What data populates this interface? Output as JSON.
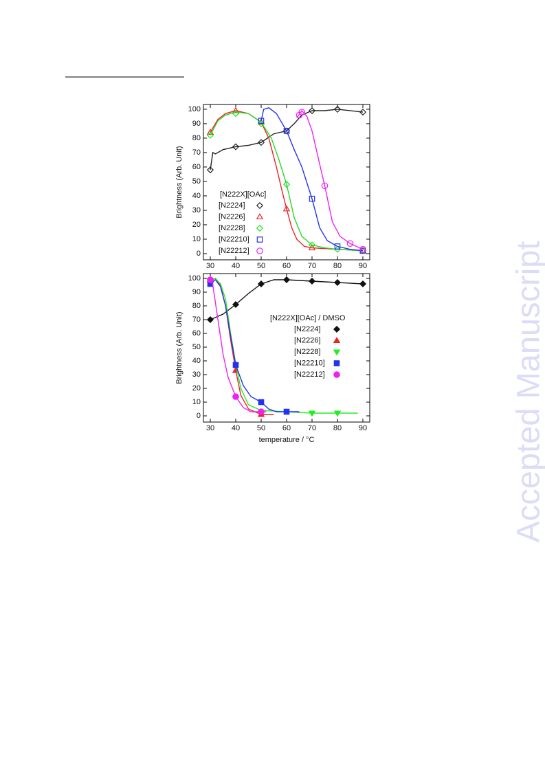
{
  "watermark": "Accepted Manuscript",
  "chart_data": [
    {
      "type": "line",
      "y_label": "Brightness (Arb. Unit)",
      "legend_title": "[N222X][OAc]",
      "filled_markers": false,
      "xlim": [
        27.3,
        92.7
      ],
      "ylim": [
        -4.3,
        103.3
      ],
      "xticks": [
        30,
        40,
        50,
        60,
        70,
        80,
        90
      ],
      "yticks": [
        0,
        10,
        20,
        30,
        40,
        50,
        60,
        70,
        80,
        90,
        100
      ],
      "series": [
        {
          "name": "[N2224]",
          "color": "#222222",
          "marker": "diamond",
          "x": [
            30,
            40,
            50,
            60,
            70,
            80,
            90
          ],
          "values": [
            58,
            74,
            77,
            85,
            99,
            100,
            98
          ],
          "line_x": [
            30,
            31,
            32,
            35,
            40,
            45,
            50,
            55,
            60,
            63,
            66,
            70,
            75,
            80,
            90
          ],
          "line_values": [
            58,
            70,
            69,
            72,
            74,
            75,
            77,
            83,
            85,
            90,
            96,
            99,
            99,
            100,
            98
          ]
        },
        {
          "name": "[N2226]",
          "color": "#ee2222",
          "marker": "triangle",
          "x": [
            30,
            40,
            50,
            60,
            70,
            90
          ],
          "values": [
            84,
            99,
            91,
            31,
            4,
            2
          ],
          "line_x": [
            30,
            33,
            36,
            40,
            45,
            50,
            53,
            56,
            58,
            60,
            62,
            64,
            67,
            70,
            80,
            90
          ],
          "line_values": [
            84,
            93,
            97,
            99,
            97,
            91,
            80,
            60,
            45,
            31,
            18,
            10,
            5,
            4,
            3,
            2
          ]
        },
        {
          "name": "[N2228]",
          "color": "#22dd22",
          "marker": "diamond",
          "x": [
            30,
            40,
            50,
            60,
            70,
            80,
            90
          ],
          "values": [
            82,
            97,
            90,
            48,
            6,
            3,
            2
          ],
          "line_x": [
            30,
            33,
            36,
            40,
            45,
            50,
            54,
            57,
            60,
            63,
            66,
            70,
            75,
            80,
            90
          ],
          "line_values": [
            82,
            92,
            96,
            98,
            97,
            91,
            80,
            65,
            48,
            25,
            12,
            6,
            4,
            3,
            2
          ]
        },
        {
          "name": "[N22210]",
          "color": "#2233ee",
          "marker": "square",
          "x": [
            50,
            60,
            70,
            80,
            90
          ],
          "values": [
            92,
            85,
            38,
            5,
            2
          ],
          "line_x": [
            50,
            51,
            53,
            56,
            60,
            63,
            66,
            70,
            73,
            76,
            80,
            85,
            90
          ],
          "line_values": [
            92,
            100,
            101,
            97,
            85,
            72,
            60,
            38,
            18,
            9,
            5,
            3,
            2
          ]
        },
        {
          "name": "[N22212]",
          "color": "#ee22ee",
          "marker": "circle",
          "x": [
            65,
            66,
            75,
            85,
            90
          ],
          "values": [
            96,
            98,
            47,
            7,
            3
          ],
          "line_x": [
            64,
            66,
            68,
            70,
            73,
            75,
            78,
            81,
            85,
            90
          ],
          "line_values": [
            94,
            99,
            95,
            85,
            62,
            47,
            22,
            12,
            7,
            3
          ]
        }
      ]
    },
    {
      "type": "line",
      "x_label": "temperature / °C",
      "y_label": "Brightness (Arb. Unit)",
      "legend_title": "[N222X][OAc] / DMSO",
      "filled_markers": true,
      "xlim": [
        27.3,
        92.7
      ],
      "ylim": [
        -4.5,
        103.5
      ],
      "xticks": [
        30,
        40,
        50,
        60,
        70,
        80,
        90
      ],
      "yticks": [
        0,
        10,
        20,
        30,
        40,
        50,
        60,
        70,
        80,
        90,
        100
      ],
      "series": [
        {
          "name": "[N2224]",
          "color": "#111111",
          "marker": "diamond",
          "x": [
            30,
            40,
            50,
            60,
            70,
            80,
            90
          ],
          "values": [
            70,
            81,
            96,
            99,
            98,
            97,
            96
          ],
          "line_x": [
            30,
            35,
            40,
            45,
            50,
            55,
            60,
            70,
            80,
            90
          ],
          "line_values": [
            70,
            74,
            81,
            89,
            96,
            99,
            99,
            98,
            97,
            96
          ]
        },
        {
          "name": "[N2226]",
          "color": "#ee2222",
          "marker": "triangle",
          "x": [
            30,
            40,
            50
          ],
          "values": [
            99,
            33,
            1
          ],
          "line_x": [
            30,
            32,
            34,
            36,
            38,
            40,
            42,
            45,
            50,
            55
          ],
          "line_values": [
            99,
            100,
            95,
            80,
            55,
            33,
            15,
            5,
            1,
            1
          ]
        },
        {
          "name": "[N2228]",
          "color": "#22ee22",
          "marker": "triangle-down",
          "x": [
            30,
            70,
            80
          ],
          "values": [
            98,
            2,
            2
          ],
          "line_x": [
            30,
            32,
            34,
            36,
            38,
            40,
            42,
            45,
            50,
            60,
            70,
            80,
            88
          ],
          "line_values": [
            98,
            100,
            96,
            85,
            60,
            38,
            20,
            8,
            4,
            3,
            2,
            2,
            2
          ]
        },
        {
          "name": "[N22210]",
          "color": "#2233ee",
          "marker": "square",
          "x": [
            30,
            40,
            50,
            60
          ],
          "values": [
            96,
            37,
            10,
            3
          ],
          "line_x": [
            30,
            32,
            34,
            36,
            38,
            40,
            43,
            46,
            50,
            53,
            56,
            60,
            65
          ],
          "line_values": [
            96,
            99,
            94,
            80,
            58,
            37,
            22,
            14,
            10,
            5,
            3,
            3,
            3
          ]
        },
        {
          "name": "[N22212]",
          "color": "#ee22ee",
          "marker": "circle",
          "x": [
            30,
            40,
            50
          ],
          "values": [
            99,
            14,
            3
          ],
          "line_x": [
            30,
            31,
            33,
            35,
            37,
            40,
            43,
            46,
            50,
            52
          ],
          "line_values": [
            99,
            95,
            70,
            45,
            28,
            14,
            6,
            3,
            3,
            3
          ]
        }
      ]
    }
  ]
}
